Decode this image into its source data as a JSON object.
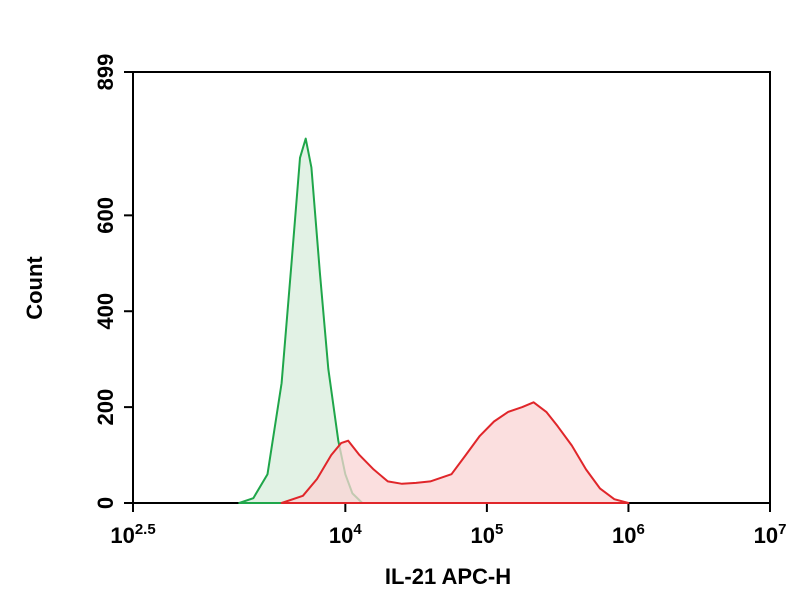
{
  "chart_data": {
    "type": "histogram-overlay",
    "x_label": "IL-21 APC-H",
    "y_label": "Count",
    "x_scale": "log",
    "xlim": [
      316.23,
      10000000
    ],
    "xticks": [
      {
        "value": 316.23,
        "label": "10",
        "sup": "2.5"
      },
      {
        "value": 10000,
        "label": "10",
        "sup": "4"
      },
      {
        "value": 100000,
        "label": "10",
        "sup": "5"
      },
      {
        "value": 1000000,
        "label": "10",
        "sup": "6"
      },
      {
        "value": 10000000,
        "label": "10",
        "sup": "7"
      }
    ],
    "ylim": [
      0,
      899
    ],
    "yticks": [
      0,
      200,
      400,
      600,
      899
    ],
    "series": [
      {
        "color": "#1fa64a",
        "fill": "#d8eedc",
        "x": [
          1778,
          2239,
          2818,
          3548,
          4169,
          4786,
          5248,
          5754,
          6607,
          7586,
          8913,
          10000,
          11220,
          13183
        ],
        "values": [
          0,
          10,
          60,
          250,
          500,
          720,
          760,
          700,
          480,
          280,
          130,
          60,
          20,
          0
        ]
      },
      {
        "color": "#e0262a",
        "fill": "#f9d4d4",
        "x": [
          3548,
          5012,
          6310,
          7943,
          9333,
          10471,
          12589,
          15849,
          19953,
          25119,
          31623,
          39811,
          56234,
          70795,
          89125,
          112202,
          141254,
          177828,
          213796,
          263027,
          316228,
          398107,
          501187,
          630957,
          794328,
          1000000
        ],
        "values": [
          0,
          15,
          50,
          100,
          125,
          130,
          100,
          70,
          45,
          40,
          42,
          45,
          60,
          100,
          140,
          170,
          190,
          200,
          210,
          190,
          160,
          120,
          70,
          30,
          8,
          0
        ]
      }
    ]
  }
}
